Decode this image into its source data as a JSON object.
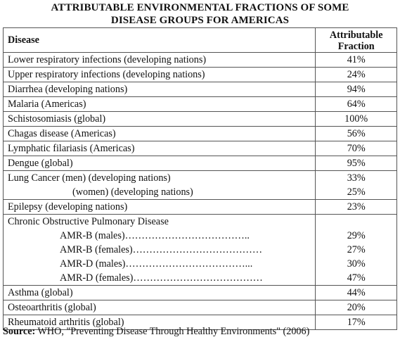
{
  "title_line1": "ATTRIBUTABLE ENVIRONMENTAL FRACTIONS OF SOME",
  "title_line2": "DISEASE GROUPS FOR AMERICAS",
  "header": {
    "disease": "Disease",
    "fraction_line1": "Attributable",
    "fraction_line2": "Fraction"
  },
  "rows": [
    {
      "disease": "Lower respiratory infections (developing nations)",
      "value": "41%"
    },
    {
      "disease": "Upper respiratory infections (developing nations)",
      "value": "24%"
    },
    {
      "disease": "Diarrhea (developing nations)",
      "value": "94%"
    },
    {
      "disease": "Malaria (Americas)",
      "value": "64%"
    },
    {
      "disease": "Schistosomiasis (global)",
      "value": "100%"
    },
    {
      "disease": "Chagas disease (Americas)",
      "value": "56%"
    },
    {
      "disease": "Lymphatic filariasis (Americas)",
      "value": "70%"
    },
    {
      "disease": "Dengue (global)",
      "value": "95%"
    }
  ],
  "lung": {
    "line1": "Lung Cancer (men) (developing nations)",
    "value1": "33%",
    "line2": "(women) (developing nations)",
    "value2": "25%"
  },
  "epilepsy": {
    "disease": "Epilepsy (developing nations)",
    "value": "23%"
  },
  "copd": {
    "heading": "Chronic Obstructive Pulmonary Disease",
    "items": [
      {
        "label": "AMR-B (males)………………………………..",
        "value": "29%"
      },
      {
        "label": "AMR-B (females)…………………………………",
        "value": "27%"
      },
      {
        "label": "AMR-D (males)………………………………...",
        "value": "30%"
      },
      {
        "label": "AMR-D (females)…………………………………",
        "value": "47%"
      }
    ]
  },
  "tail_rows": [
    {
      "disease": "Asthma (global)",
      "value": "44%"
    },
    {
      "disease": "Osteoarthritis (global)",
      "value": "20%"
    },
    {
      "disease": "Rheumatoid arthritis (global)",
      "value": "17%"
    }
  ],
  "source": {
    "label": "Source:",
    "text": " WHO, \"Preventing Disease Through Healthy Environments\" (2006)"
  }
}
